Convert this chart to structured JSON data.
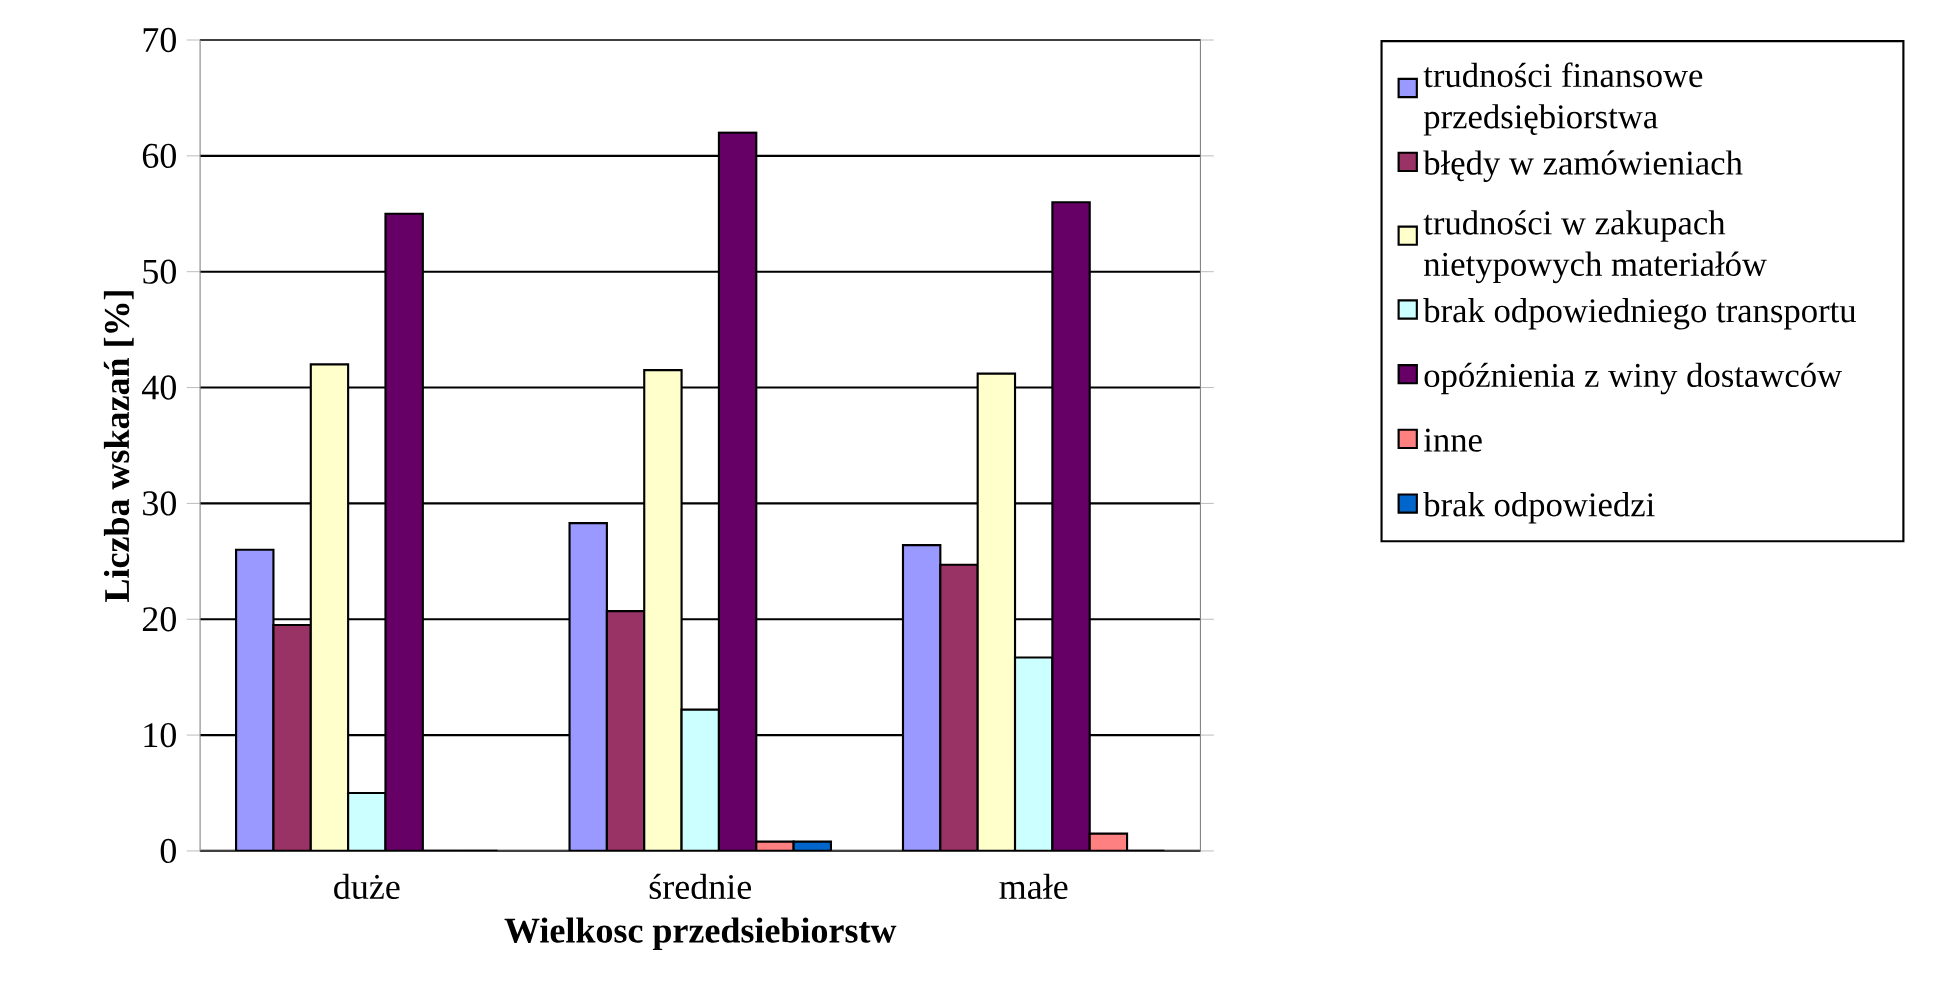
{
  "chart_data": {
    "type": "bar",
    "xlabel": "Wielkosc przedsiebiorstw",
    "ylabel": "Liczba wskazań [%]",
    "categories": [
      "duże",
      "średnie",
      "małe"
    ],
    "series": [
      {
        "name": "trudności finansowe przedsiębiorstwa",
        "color": "#9999ff",
        "values": [
          26,
          28.3,
          26.4
        ]
      },
      {
        "name": "błędy w zamówieniach",
        "color": "#993366",
        "values": [
          19.5,
          20.7,
          24.7
        ]
      },
      {
        "name": "trudności w zakupach nietypowych materiałów",
        "color": "#ffffcc",
        "values": [
          42,
          41.5,
          41.2
        ]
      },
      {
        "name": "brak odpowiedniego transportu",
        "color": "#ccffff",
        "values": [
          5,
          12.2,
          16.7
        ]
      },
      {
        "name": "opóźnienia z winy dostawców",
        "color": "#660066",
        "values": [
          55,
          62,
          56
        ]
      },
      {
        "name": "inne",
        "color": "#ff8080",
        "values": [
          0,
          0.8,
          1.5
        ]
      },
      {
        "name": "brak odpowiedzi",
        "color": "#0066cc",
        "values": [
          0,
          0.8,
          0
        ]
      }
    ],
    "ylim": [
      0,
      70
    ],
    "yticks": [
      0,
      10,
      20,
      30,
      40,
      50,
      60,
      70
    ],
    "grid": "y",
    "legend": "right"
  }
}
